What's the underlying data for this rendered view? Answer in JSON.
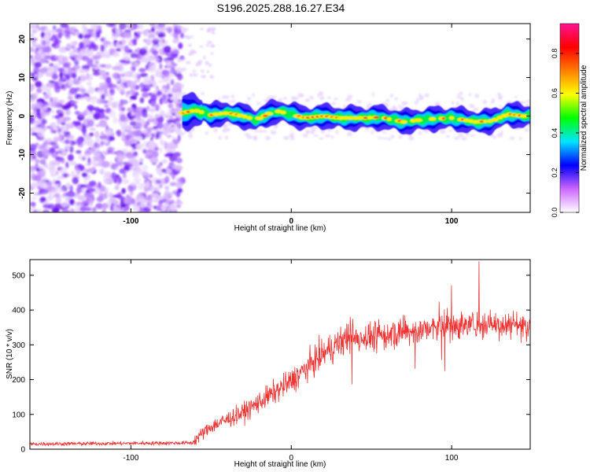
{
  "title": "S196.2025.288.16.27.E34",
  "chart_data": [
    {
      "type": "heatmap",
      "xlabel": "Height of straight line (km)",
      "ylabel": "Frequency (Hz)",
      "xlim": [
        -163,
        149
      ],
      "ylim": [
        -25,
        24
      ],
      "xticks": [
        -100,
        0,
        100
      ],
      "yticks": [
        -20,
        -10,
        0,
        10,
        20
      ],
      "noise_region_x": [
        -163,
        -68
      ],
      "signal_start_x": -68,
      "ridge": [
        {
          "x": -68,
          "f": 0.8
        },
        {
          "x": -60,
          "f": 1.5
        },
        {
          "x": -50,
          "f": 0.3
        },
        {
          "x": -40,
          "f": 0.8
        },
        {
          "x": -30,
          "f": 0.0
        },
        {
          "x": -22,
          "f": -1.0
        },
        {
          "x": -15,
          "f": 0.5
        },
        {
          "x": -8,
          "f": 1.2
        },
        {
          "x": 0,
          "f": 0.5
        },
        {
          "x": 8,
          "f": -0.5
        },
        {
          "x": 20,
          "f": 0.0
        },
        {
          "x": 30,
          "f": -0.5
        },
        {
          "x": 45,
          "f": -0.5
        },
        {
          "x": 55,
          "f": -0.3
        },
        {
          "x": 70,
          "f": -1.5
        },
        {
          "x": 85,
          "f": -0.8
        },
        {
          "x": 100,
          "f": -0.5
        },
        {
          "x": 115,
          "f": -1.5
        },
        {
          "x": 125,
          "f": -1.3
        },
        {
          "x": 135,
          "f": 0.5
        },
        {
          "x": 145,
          "f": 0.0
        }
      ],
      "colorbar": {
        "label": "Normalized spectral amplitude",
        "ticks": [
          0.0,
          0.2,
          0.4,
          0.6,
          0.8
        ],
        "tick_labels": [
          "0.0",
          "0.2",
          "0.4",
          "0.6",
          "0.8"
        ],
        "range": [
          0,
          0.95
        ],
        "stops": [
          "#ffffff",
          "#cc66ff",
          "#0000ff",
          "#00e5ff",
          "#00ff00",
          "#ffff00",
          "#ff7f00",
          "#ff0000",
          "#ff1493"
        ]
      }
    },
    {
      "type": "line",
      "xlabel": "Height of straight line (km)",
      "ylabel": "SNR (10 * v/v)",
      "xlim": [
        -163,
        149
      ],
      "ylim": [
        0,
        545
      ],
      "xticks": [
        -100,
        0,
        100
      ],
      "yticks": [
        0,
        100,
        200,
        300,
        400,
        500
      ],
      "color": "#ee3333",
      "trend": [
        {
          "x": -163,
          "y": 15
        },
        {
          "x": -62,
          "y": 18
        },
        {
          "x": -58,
          "y": 35
        },
        {
          "x": -50,
          "y": 65
        },
        {
          "x": -40,
          "y": 85
        },
        {
          "x": -30,
          "y": 105
        },
        {
          "x": -20,
          "y": 135
        },
        {
          "x": -10,
          "y": 165
        },
        {
          "x": 0,
          "y": 195
        },
        {
          "x": 10,
          "y": 235
        },
        {
          "x": 20,
          "y": 275
        },
        {
          "x": 30,
          "y": 305
        },
        {
          "x": 40,
          "y": 320
        },
        {
          "x": 55,
          "y": 325
        },
        {
          "x": 70,
          "y": 335
        },
        {
          "x": 85,
          "y": 345
        },
        {
          "x": 100,
          "y": 355
        },
        {
          "x": 120,
          "y": 360
        },
        {
          "x": 149,
          "y": 360
        }
      ],
      "peak": {
        "x": 117,
        "y": 540
      }
    }
  ]
}
